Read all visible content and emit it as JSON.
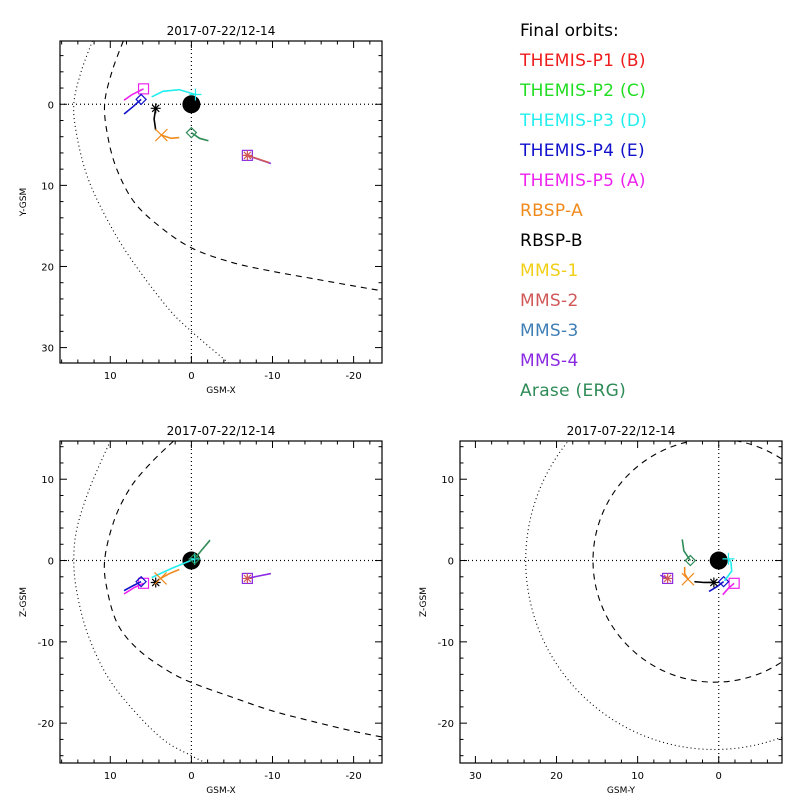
{
  "legend": {
    "title": "Final orbits:",
    "items": [
      {
        "id": "themis-p1",
        "label": "THEMIS-P1 (B)",
        "color": "#ee1c1c"
      },
      {
        "id": "themis-p2",
        "label": "THEMIS-P2 (C)",
        "color": "#22dd22"
      },
      {
        "id": "themis-p3",
        "label": "THEMIS-P3 (D)",
        "color": "#22eeee"
      },
      {
        "id": "themis-p4",
        "label": "THEMIS-P4 (E)",
        "color": "#1111cc"
      },
      {
        "id": "themis-p5",
        "label": "THEMIS-P5 (A)",
        "color": "#ee22ee"
      },
      {
        "id": "rbsp-a",
        "label": "RBSP-A",
        "color": "#f08a1c"
      },
      {
        "id": "rbsp-b",
        "label": "RBSP-B",
        "color": "#000000"
      },
      {
        "id": "mms-1",
        "label": "MMS-1",
        "color": "#f2cf16"
      },
      {
        "id": "mms-2",
        "label": "MMS-2",
        "color": "#d05858"
      },
      {
        "id": "mms-3",
        "label": "MMS-3",
        "color": "#3f7fb5"
      },
      {
        "id": "mms-4",
        "label": "MMS-4",
        "color": "#8a2be2"
      },
      {
        "id": "arase",
        "label": "Arase (ERG)",
        "color": "#2e8b57"
      }
    ]
  },
  "chart_data": [
    {
      "type": "scatter",
      "id": "xy-plane",
      "title": "2017-07-22/12-14",
      "xlabel": "GSM-X",
      "ylabel": "Y-GSM",
      "xlim": [
        16.2,
        -23.5
      ],
      "ylim": [
        -7.8,
        31.9
      ],
      "x_ticks": [
        10,
        0,
        -10,
        -20
      ],
      "y_ticks": [
        0,
        10,
        20,
        30
      ],
      "crosshair": true,
      "earth": [
        0,
        0
      ],
      "boundaries": [
        {
          "name": "magnetopause",
          "style": "dashed",
          "points": [
            [
              8.4,
              -7.8
            ],
            [
              9.8,
              -4
            ],
            [
              10.7,
              0
            ],
            [
              10.3,
              4
            ],
            [
              9.2,
              8
            ],
            [
              7.1,
              12
            ],
            [
              4,
              15
            ],
            [
              0,
              17.7
            ],
            [
              -5,
              19.5
            ],
            [
              -10,
              20.6
            ],
            [
              -15,
              21.5
            ],
            [
              -20,
              22.4
            ],
            [
              -23.5,
              23
            ]
          ]
        },
        {
          "name": "bow-shock",
          "style": "dotted",
          "points": [
            [
              12.2,
              -7.8
            ],
            [
              13.6,
              -4
            ],
            [
              14.5,
              0
            ],
            [
              14.1,
              4
            ],
            [
              12.8,
              9
            ],
            [
              10.5,
              14
            ],
            [
              7.5,
              19
            ],
            [
              3,
              25
            ],
            [
              0,
              28
            ],
            [
              -4.7,
              32
            ]
          ]
        }
      ],
      "series": [
        {
          "name": "THEMIS-P5 (A)",
          "marker": "square",
          "color": "#ee22ee",
          "trace": [
            [
              8.3,
              -0.5
            ],
            [
              7.3,
              -1.2
            ],
            [
              5.9,
              -1.9
            ]
          ]
        },
        {
          "name": "THEMIS-P4 (E)",
          "marker": "diamond",
          "color": "#1111cc",
          "trace": [
            [
              8.3,
              1.2
            ],
            [
              7.2,
              0.3
            ],
            [
              6.2,
              -0.6
            ]
          ]
        },
        {
          "name": "THEMIS-P3 (D)",
          "marker": "plus",
          "color": "#22eeee",
          "trace": [
            [
              4.9,
              -0.9
            ],
            [
              3.5,
              -1.6
            ],
            [
              1.5,
              -1.8
            ],
            [
              -0.5,
              -1.2
            ]
          ]
        },
        {
          "name": "RBSP-B",
          "marker": "asterisk",
          "color": "#000000",
          "trace": [
            [
              4.4,
              3.2
            ],
            [
              4.6,
              1.8
            ],
            [
              4.4,
              0.5
            ]
          ]
        },
        {
          "name": "RBSP-A",
          "marker": "x",
          "color": "#f08a1c",
          "trace": [
            [
              1.5,
              4.1
            ],
            [
              2.5,
              4.2
            ],
            [
              3.7,
              3.8
            ]
          ]
        },
        {
          "name": "Arase (ERG)",
          "marker": "diamond",
          "color": "#2e8b57",
          "trace": [
            [
              -2.1,
              4.5
            ],
            [
              -1,
              4.2
            ],
            [
              0,
              3.5
            ]
          ]
        },
        {
          "name": "MMS-4",
          "marker": "square",
          "color": "#8a2be2",
          "trace": [
            [
              -9.8,
              7.3
            ],
            [
              -8.3,
              6.8
            ],
            [
              -6.9,
              6.3
            ]
          ]
        },
        {
          "name": "MMS-2",
          "marker": "asterisk",
          "color": "#d05858",
          "trace": [
            [
              -9.6,
              7.2
            ],
            [
              -6.9,
              6.3
            ]
          ]
        }
      ]
    },
    {
      "type": "scatter",
      "id": "xz-plane",
      "title": "2017-07-22/12-14",
      "xlabel": "GSM-X",
      "ylabel": "Z-GSM",
      "xlim": [
        16.2,
        -23.5
      ],
      "ylim": [
        14.7,
        -24.9
      ],
      "x_ticks": [
        10,
        0,
        -10,
        -20
      ],
      "y_ticks": [
        10,
        0,
        -10,
        -20
      ],
      "crosshair": true,
      "earth": [
        0,
        0
      ],
      "boundaries": [
        {
          "name": "magnetopause",
          "style": "dashed",
          "points": [
            [
              2.2,
              14.7
            ],
            [
              5,
              12
            ],
            [
              7.5,
              9
            ],
            [
              9.5,
              5
            ],
            [
              10.7,
              0
            ],
            [
              10.3,
              -4
            ],
            [
              9,
              -8
            ],
            [
              6.5,
              -11
            ],
            [
              3,
              -13.5
            ],
            [
              0,
              -15
            ],
            [
              -5,
              -16.8
            ],
            [
              -10,
              -18.5
            ],
            [
              -15,
              -19.8
            ],
            [
              -20,
              -21
            ],
            [
              -23.5,
              -21.7
            ]
          ]
        },
        {
          "name": "bow-shock",
          "style": "dotted",
          "points": [
            [
              10,
              14.7
            ],
            [
              12.5,
              9
            ],
            [
              14.1,
              4
            ],
            [
              14.5,
              0
            ],
            [
              14.1,
              -4
            ],
            [
              12.8,
              -9
            ],
            [
              10.5,
              -14
            ],
            [
              7.5,
              -18
            ],
            [
              3.5,
              -22
            ],
            [
              0,
              -24
            ],
            [
              -1.8,
              -24.9
            ]
          ]
        }
      ],
      "series": [
        {
          "name": "THEMIS-P5 (A)",
          "marker": "square",
          "color": "#ee22ee",
          "trace": [
            [
              8.3,
              -4.1
            ],
            [
              7,
              -3.3
            ],
            [
              5.9,
              -2.8
            ]
          ]
        },
        {
          "name": "THEMIS-P4 (E)",
          "marker": "diamond",
          "color": "#1111cc",
          "trace": [
            [
              8.3,
              -3.7
            ],
            [
              7.2,
              -3.1
            ],
            [
              6.2,
              -2.6
            ]
          ]
        },
        {
          "name": "THEMIS-P3 (D)",
          "marker": "plus",
          "color": "#22eeee",
          "trace": [
            [
              4.9,
              -2.1
            ],
            [
              2.5,
              -1
            ],
            [
              -0.4,
              0.2
            ]
          ]
        },
        {
          "name": "RBSP-B",
          "marker": "asterisk",
          "color": "#000000",
          "trace": [
            [
              4.4,
              -2.7
            ]
          ]
        },
        {
          "name": "RBSP-A",
          "marker": "x",
          "color": "#f08a1c",
          "trace": [
            [
              1.5,
              -1.1
            ],
            [
              2.7,
              -1.6
            ],
            [
              3.8,
              -2.2
            ]
          ]
        },
        {
          "name": "Arase (ERG)",
          "marker": "diamond",
          "color": "#2e8b57",
          "trace": [
            [
              -2.3,
              2.5
            ],
            [
              -1.2,
              1.2
            ],
            [
              -0.4,
              0.2
            ]
          ]
        },
        {
          "name": "MMS-4",
          "marker": "square",
          "color": "#8a2be2",
          "trace": [
            [
              -9.8,
              -1.6
            ],
            [
              -8.3,
              -1.9
            ],
            [
              -6.9,
              -2.2
            ]
          ]
        },
        {
          "name": "MMS-2",
          "marker": "asterisk",
          "color": "#d05858",
          "trace": [
            [
              -6.9,
              -2.2
            ]
          ]
        }
      ]
    },
    {
      "type": "scatter",
      "id": "yz-plane",
      "title": "2017-07-22/12-14",
      "xlabel": "GSM-Y",
      "ylabel": "Z-GSM",
      "xlim": [
        31.9,
        -7.8
      ],
      "ylim": [
        14.7,
        -24.9
      ],
      "x_ticks": [
        30,
        20,
        10,
        0
      ],
      "y_ticks": [
        10,
        0,
        -10,
        -20
      ],
      "crosshair": true,
      "earth": [
        0,
        0
      ],
      "boundaries": [
        {
          "name": "magnetopause",
          "style": "dashed",
          "circle": {
            "center": [
              0.5,
              0
            ],
            "radius": 15
          }
        },
        {
          "name": "bow-shock",
          "style": "dotted",
          "circle": {
            "center": [
              0.5,
              0
            ],
            "radius": 23.3
          }
        }
      ],
      "series": [
        {
          "name": "THEMIS-P5 (A)",
          "marker": "square",
          "color": "#ee22ee",
          "trace": [
            [
              -0.5,
              -4.2
            ],
            [
              -1.2,
              -3.4
            ],
            [
              -1.9,
              -2.8
            ]
          ]
        },
        {
          "name": "THEMIS-P4 (E)",
          "marker": "diamond",
          "color": "#1111cc",
          "trace": [
            [
              1.2,
              -3.8
            ],
            [
              0.2,
              -3.2
            ],
            [
              -0.6,
              -2.6
            ]
          ]
        },
        {
          "name": "THEMIS-P3 (D)",
          "marker": "plus",
          "color": "#22eeee",
          "trace": [
            [
              -0.7,
              -2.5
            ],
            [
              -1.6,
              -1.3
            ],
            [
              -1.5,
              -0.2
            ],
            [
              -1.2,
              0.2
            ]
          ]
        },
        {
          "name": "RBSP-B",
          "marker": "asterisk",
          "color": "#000000",
          "trace": [
            [
              3,
              -2.6
            ],
            [
              1.8,
              -2.7
            ],
            [
              0.6,
              -2.7
            ]
          ]
        },
        {
          "name": "RBSP-A",
          "marker": "x",
          "color": "#f08a1c",
          "trace": [
            [
              4.2,
              -0.8
            ],
            [
              4.2,
              -1.6
            ],
            [
              3.8,
              -2.3
            ]
          ]
        },
        {
          "name": "Arase (ERG)",
          "marker": "diamond",
          "color": "#2e8b57",
          "trace": [
            [
              4.5,
              2.6
            ],
            [
              4.3,
              1.2
            ],
            [
              3.5,
              0
            ]
          ]
        },
        {
          "name": "MMS-4",
          "marker": "square",
          "color": "#8a2be2",
          "trace": [
            [
              7.2,
              -1.8
            ],
            [
              6.8,
              -2
            ],
            [
              6.3,
              -2.2
            ]
          ]
        },
        {
          "name": "MMS-2",
          "marker": "asterisk",
          "color": "#d05858",
          "trace": [
            [
              6.3,
              -2.2
            ]
          ]
        }
      ]
    }
  ]
}
